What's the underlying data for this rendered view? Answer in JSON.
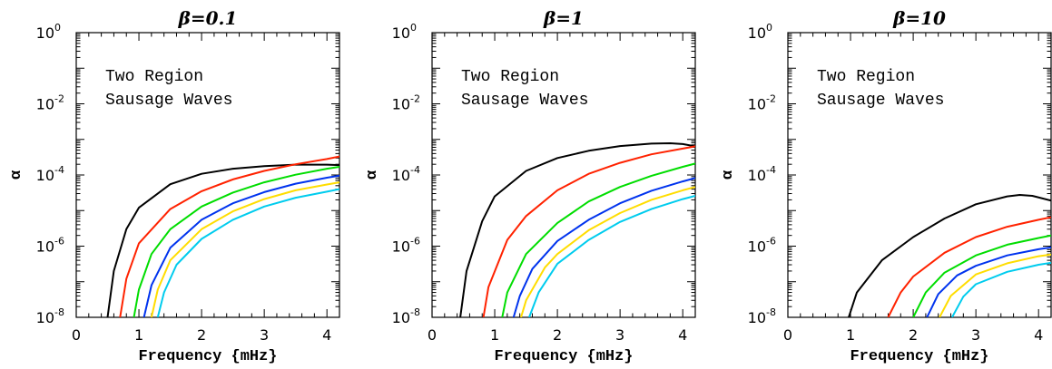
{
  "chart_data": [
    {
      "type": "line",
      "title": "β=0.1",
      "xlabel": "Frequency {mHz}",
      "ylabel": "α",
      "y_scale": "log",
      "xlim": [
        0,
        4.2
      ],
      "ylim": [
        1e-08,
        1
      ],
      "xticks": [
        "0",
        "1",
        "2",
        "3",
        "4"
      ],
      "yticks": [
        {
          "base": "10",
          "exp": "-8"
        },
        {
          "base": "10",
          "exp": "-6"
        },
        {
          "base": "10",
          "exp": "-4"
        },
        {
          "base": "10",
          "exp": "-2"
        },
        {
          "base": "10",
          "exp": "0"
        }
      ],
      "annotation": [
        "Two Region",
        "Sausage Waves"
      ],
      "series": [
        {
          "color": "#000000",
          "points": [
            [
              0.5,
              1e-08
            ],
            [
              0.6,
              2e-07
            ],
            [
              0.8,
              3e-06
            ],
            [
              1.0,
              1.2e-05
            ],
            [
              1.5,
              5.5e-05
            ],
            [
              2.0,
              0.000108
            ],
            [
              2.5,
              0.00015
            ],
            [
              3.0,
              0.000178
            ],
            [
              3.5,
              0.000195
            ],
            [
              4.0,
              0.000195
            ],
            [
              4.2,
              0.00019
            ]
          ]
        },
        {
          "color": "#ff2200",
          "points": [
            [
              0.7,
              1e-08
            ],
            [
              0.8,
              1.2e-07
            ],
            [
              1.0,
              1.2e-06
            ],
            [
              1.5,
              1.1e-05
            ],
            [
              2.0,
              3.5e-05
            ],
            [
              2.5,
              7.5e-05
            ],
            [
              3.0,
              0.00013
            ],
            [
              3.5,
              0.0002
            ],
            [
              4.0,
              0.00028
            ],
            [
              4.2,
              0.00033
            ]
          ]
        },
        {
          "color": "#00dd00",
          "points": [
            [
              0.92,
              1e-08
            ],
            [
              1.0,
              6e-08
            ],
            [
              1.2,
              6e-07
            ],
            [
              1.5,
              3e-06
            ],
            [
              2.0,
              1.3e-05
            ],
            [
              2.5,
              3.2e-05
            ],
            [
              3.0,
              6.2e-05
            ],
            [
              3.5,
              0.000102
            ],
            [
              4.0,
              0.00015
            ],
            [
              4.2,
              0.00017
            ]
          ]
        },
        {
          "color": "#0033ee",
          "points": [
            [
              1.08,
              1e-08
            ],
            [
              1.2,
              8e-08
            ],
            [
              1.5,
              9e-07
            ],
            [
              2.0,
              5.5e-06
            ],
            [
              2.5,
              1.6e-05
            ],
            [
              3.0,
              3.3e-05
            ],
            [
              3.5,
              5.7e-05
            ],
            [
              4.0,
              8.4e-05
            ],
            [
              4.2,
              9.6e-05
            ]
          ]
        },
        {
          "color": "#ffdd00",
          "points": [
            [
              1.2,
              1e-08
            ],
            [
              1.3,
              6e-08
            ],
            [
              1.5,
              4e-07
            ],
            [
              2.0,
              3e-06
            ],
            [
              2.5,
              9.5e-06
            ],
            [
              3.0,
              2.1e-05
            ],
            [
              3.5,
              3.7e-05
            ],
            [
              4.0,
              5.4e-05
            ],
            [
              4.2,
              6.2e-05
            ]
          ]
        },
        {
          "color": "#00ccee",
          "points": [
            [
              1.3,
              1e-08
            ],
            [
              1.4,
              5e-08
            ],
            [
              1.6,
              3e-07
            ],
            [
              2.0,
              1.6e-06
            ],
            [
              2.5,
              5.5e-06
            ],
            [
              3.0,
              1.3e-05
            ],
            [
              3.5,
              2.3e-05
            ],
            [
              4.0,
              3.4e-05
            ],
            [
              4.2,
              4e-05
            ]
          ]
        }
      ]
    },
    {
      "type": "line",
      "title": "β=1",
      "xlabel": "Frequency {mHz}",
      "ylabel": "α",
      "y_scale": "log",
      "xlim": [
        0,
        4.2
      ],
      "ylim": [
        1e-08,
        1
      ],
      "xticks": [
        "0",
        "1",
        "2",
        "3",
        "4"
      ],
      "yticks": [
        {
          "base": "10",
          "exp": "-8"
        },
        {
          "base": "10",
          "exp": "-6"
        },
        {
          "base": "10",
          "exp": "-4"
        },
        {
          "base": "10",
          "exp": "-2"
        },
        {
          "base": "10",
          "exp": "0"
        }
      ],
      "annotation": [
        "Two Region",
        "Sausage Waves"
      ],
      "series": [
        {
          "color": "#000000",
          "points": [
            [
              0.45,
              1e-08
            ],
            [
              0.55,
              2e-07
            ],
            [
              0.8,
              5e-06
            ],
            [
              1.0,
              2.5e-05
            ],
            [
              1.5,
              0.00013
            ],
            [
              2.0,
              0.0003
            ],
            [
              2.5,
              0.00048
            ],
            [
              3.0,
              0.00065
            ],
            [
              3.5,
              0.00076
            ],
            [
              3.8,
              0.00078
            ],
            [
              4.0,
              0.00074
            ],
            [
              4.2,
              0.00064
            ]
          ]
        },
        {
          "color": "#ff2200",
          "points": [
            [
              0.82,
              1e-08
            ],
            [
              0.9,
              7e-08
            ],
            [
              1.2,
              1.5e-06
            ],
            [
              1.5,
              7e-06
            ],
            [
              2.0,
              3.7e-05
            ],
            [
              2.5,
              0.000108
            ],
            [
              3.0,
              0.00022
            ],
            [
              3.5,
              0.00038
            ],
            [
              4.0,
              0.00055
            ],
            [
              4.2,
              0.00064
            ]
          ]
        },
        {
          "color": "#00dd00",
          "points": [
            [
              1.12,
              1e-08
            ],
            [
              1.2,
              5e-08
            ],
            [
              1.5,
              6e-07
            ],
            [
              2.0,
              4.5e-06
            ],
            [
              2.5,
              1.8e-05
            ],
            [
              3.0,
              4.6e-05
            ],
            [
              3.5,
              9.5e-05
            ],
            [
              4.0,
              0.00017
            ],
            [
              4.2,
              0.00021
            ]
          ]
        },
        {
          "color": "#0033ee",
          "points": [
            [
              1.3,
              1e-08
            ],
            [
              1.4,
              4e-08
            ],
            [
              1.6,
              2.3e-07
            ],
            [
              2.0,
              1.4e-06
            ],
            [
              2.5,
              5.5e-06
            ],
            [
              3.0,
              1.6e-05
            ],
            [
              3.5,
              3.6e-05
            ],
            [
              4.0,
              6.6e-05
            ],
            [
              4.2,
              8.2e-05
            ]
          ]
        },
        {
          "color": "#ffdd00",
          "points": [
            [
              1.42,
              1e-08
            ],
            [
              1.5,
              3e-08
            ],
            [
              1.8,
              2.5e-07
            ],
            [
              2.0,
              6e-07
            ],
            [
              2.5,
              2.8e-06
            ],
            [
              3.0,
              8.5e-06
            ],
            [
              3.5,
              2e-05
            ],
            [
              4.0,
              3.7e-05
            ],
            [
              4.2,
              4.6e-05
            ]
          ]
        },
        {
          "color": "#00ccee",
          "points": [
            [
              1.55,
              1e-08
            ],
            [
              1.7,
              5e-08
            ],
            [
              2.0,
              3.2e-07
            ],
            [
              2.5,
              1.5e-06
            ],
            [
              3.0,
              4.8e-06
            ],
            [
              3.5,
              1.1e-05
            ],
            [
              4.0,
              2.1e-05
            ],
            [
              4.2,
              2.6e-05
            ]
          ]
        }
      ]
    },
    {
      "type": "line",
      "title": "β=10",
      "xlabel": "Frequency {mHz}",
      "ylabel": "α",
      "y_scale": "log",
      "xlim": [
        0,
        4.2
      ],
      "ylim": [
        1e-08,
        1
      ],
      "xticks": [
        "0",
        "1",
        "2",
        "3",
        "4"
      ],
      "yticks": [
        {
          "base": "10",
          "exp": "-8"
        },
        {
          "base": "10",
          "exp": "-6"
        },
        {
          "base": "10",
          "exp": "-4"
        },
        {
          "base": "10",
          "exp": "-2"
        },
        {
          "base": "10",
          "exp": "0"
        }
      ],
      "annotation": [
        "Two Region",
        "Sausage Waves"
      ],
      "series": [
        {
          "color": "#000000",
          "points": [
            [
              0.97,
              1e-08
            ],
            [
              1.1,
              5e-08
            ],
            [
              1.5,
              4e-07
            ],
            [
              2.0,
              1.8e-06
            ],
            [
              2.5,
              6e-06
            ],
            [
              3.0,
              1.5e-05
            ],
            [
              3.5,
              2.5e-05
            ],
            [
              3.7,
              2.75e-05
            ],
            [
              3.9,
              2.6e-05
            ],
            [
              4.2,
              1.9e-05
            ]
          ]
        },
        {
          "color": "#ff2200",
          "points": [
            [
              1.6,
              1e-08
            ],
            [
              1.8,
              5e-08
            ],
            [
              2.0,
              1.4e-07
            ],
            [
              2.5,
              6.5e-07
            ],
            [
              3.0,
              1.8e-06
            ],
            [
              3.5,
              3.5e-06
            ],
            [
              4.0,
              5.5e-06
            ],
            [
              4.2,
              6.5e-06
            ]
          ]
        },
        {
          "color": "#00dd00",
          "points": [
            [
              2.0,
              1e-08
            ],
            [
              2.2,
              5e-08
            ],
            [
              2.5,
              1.8e-07
            ],
            [
              3.0,
              5.5e-07
            ],
            [
              3.5,
              1.1e-06
            ],
            [
              4.0,
              1.7e-06
            ],
            [
              4.2,
              2e-06
            ]
          ]
        },
        {
          "color": "#0033ee",
          "points": [
            [
              2.22,
              1e-08
            ],
            [
              2.4,
              4.5e-08
            ],
            [
              2.7,
              1.5e-07
            ],
            [
              3.0,
              2.8e-07
            ],
            [
              3.5,
              5.5e-07
            ],
            [
              4.0,
              8.2e-07
            ],
            [
              4.2,
              9.2e-07
            ]
          ]
        },
        {
          "color": "#ffdd00",
          "points": [
            [
              2.42,
              1e-08
            ],
            [
              2.6,
              4e-08
            ],
            [
              3.0,
              1.6e-07
            ],
            [
              3.5,
              3.3e-07
            ],
            [
              4.0,
              5.2e-07
            ],
            [
              4.2,
              5.8e-07
            ]
          ]
        },
        {
          "color": "#00ccee",
          "points": [
            [
              2.62,
              1e-08
            ],
            [
              2.8,
              3.8e-08
            ],
            [
              3.0,
              8.5e-08
            ],
            [
              3.5,
              1.9e-07
            ],
            [
              4.0,
              3e-07
            ],
            [
              4.2,
              3.4e-07
            ]
          ]
        }
      ]
    }
  ]
}
